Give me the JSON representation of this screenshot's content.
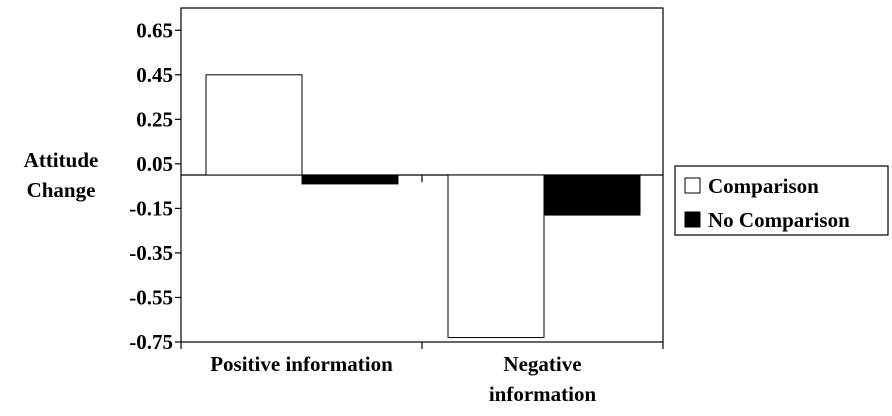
{
  "chart_data": {
    "type": "bar",
    "ylabel_lines": [
      "Attitude",
      "Change"
    ],
    "categories": [
      [
        "Positive information"
      ],
      [
        "Negative",
        "information"
      ]
    ],
    "ylim": [
      -0.75,
      0.75
    ],
    "yticks": [
      0.65,
      0.45,
      0.25,
      0.05,
      -0.15,
      -0.35,
      -0.55,
      -0.75
    ],
    "ytick_labels": [
      "0.65",
      "0.45",
      "0.25",
      "0.05",
      "-0.15",
      "-0.35",
      "-0.55",
      "-0.75"
    ],
    "grid": false,
    "legend_position": "right",
    "series": [
      {
        "name": "Comparison",
        "fill": "#ffffff",
        "values": [
          0.45,
          -0.73
        ]
      },
      {
        "name": "No Comparison",
        "fill": "#000000",
        "values": [
          -0.04,
          -0.18
        ]
      }
    ]
  }
}
